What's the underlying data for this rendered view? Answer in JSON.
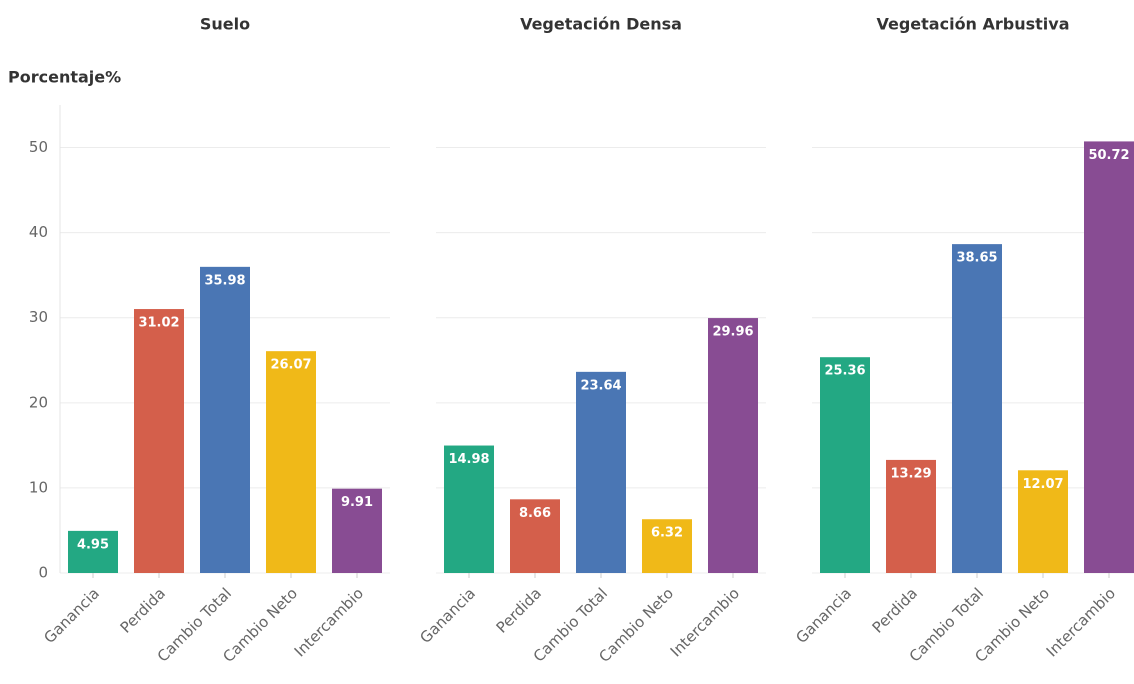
{
  "chart_data": [
    {
      "type": "bar",
      "title": "Suelo",
      "y_label": "Porcentaje%",
      "categories": [
        "Ganancia",
        "Perdida",
        "Cambio Total",
        "Cambio Neto",
        "Intercambio"
      ],
      "values": [
        4.95,
        31.02,
        35.98,
        26.07,
        9.91
      ],
      "colors": [
        "#23a883",
        "#d45f4b",
        "#4a76b4",
        "#f0b918",
        "#884c93"
      ],
      "ylim": [
        0,
        55
      ],
      "yticks": [
        0,
        10,
        20,
        30,
        40,
        50
      ],
      "grid": true
    },
    {
      "type": "bar",
      "title": "Vegetación Densa",
      "categories": [
        "Ganancia",
        "Perdida",
        "Cambio Total",
        "Cambio Neto",
        "Intercambio"
      ],
      "values": [
        14.98,
        8.66,
        23.64,
        6.32,
        29.96
      ],
      "colors": [
        "#23a883",
        "#d45f4b",
        "#4a76b4",
        "#f0b918",
        "#884c93"
      ],
      "ylim": [
        0,
        55
      ],
      "grid": true
    },
    {
      "type": "bar",
      "title": "Vegetación Arbustiva",
      "categories": [
        "Ganancia",
        "Perdida",
        "Cambio Total",
        "Cambio Neto",
        "Intercambio"
      ],
      "values": [
        25.36,
        13.29,
        38.65,
        12.07,
        50.72
      ],
      "colors": [
        "#23a883",
        "#d45f4b",
        "#4a76b4",
        "#f0b918",
        "#884c93"
      ],
      "ylim": [
        0,
        55
      ],
      "grid": true
    }
  ]
}
